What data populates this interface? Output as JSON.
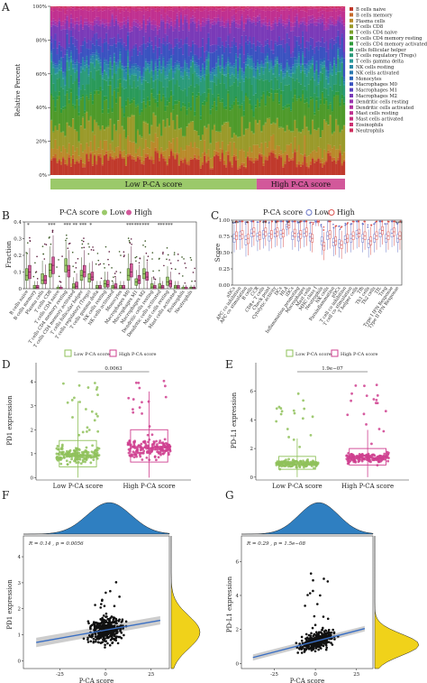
{
  "panels": {
    "A": "A",
    "B": "B",
    "C": "C",
    "D": "D",
    "E": "E",
    "F": "F",
    "G": "G"
  },
  "chart_data": [
    {
      "id": "A",
      "type": "bar",
      "ylabel": "Relative Percent",
      "yticks": [
        "0%",
        "20%",
        "40%",
        "60%",
        "80%",
        "100%"
      ],
      "ylim": [
        0,
        100
      ],
      "groups": [
        {
          "label": "Low P-CA score",
          "color": "#9bc96a"
        },
        {
          "label": "High P-CA score",
          "color": "#d2589a"
        }
      ],
      "group_split_fraction": 0.7,
      "n_samples": 150,
      "legend_position": "right",
      "cell_types": [
        "B cells naive",
        "B cells memory",
        "Plasma cells",
        "T cells CD8",
        "T cells CD4 naive",
        "T cells CD4 memory resting",
        "T cells CD4 memory activated",
        "T cells follicular helper",
        "T cells regulatory (Tregs)",
        "T cells gamma delta",
        "NK cells resting",
        "NK cells activated",
        "Monocytes",
        "Macrophages M0",
        "Macrophages M1",
        "Macrophages M2",
        "Dendritic cells resting",
        "Dendritic cells activated",
        "Mast cells resting",
        "Mast cells activated",
        "Eosinophils",
        "Neutrophils"
      ],
      "legend_labels": [
        "B cells naive",
        "B cells memory",
        "Plasma cells",
        "T cells CD8",
        "T cells CD4 naive",
        "T cells CD4 memory resting",
        "T cells CD4 memory activated",
        "cells follicular helper",
        "T cells regulatory (Tregs)",
        "T cells gamma delta",
        "NK cells resting",
        "NK cells activated",
        "Monocytes",
        "Macrophages M0",
        "Macrophages M1",
        "Macrophages M2",
        "Dendritic cells resting",
        "Dendritic cells activated",
        "Mast cells resting",
        "Mast cells activated",
        "Eosinophils",
        "Neutrophils"
      ],
      "colors": [
        "#c0392b",
        "#c66a2a",
        "#b98a2a",
        "#9a9a2a",
        "#7aa02a",
        "#4e9a2a",
        "#2e9a3a",
        "#2a9a5a",
        "#2a9a7a",
        "#2a9a9a",
        "#2a8aa6",
        "#2a78b0",
        "#2a64b8",
        "#3a52c0",
        "#5a44c0",
        "#7a3ab8",
        "#9a36b0",
        "#b032a0",
        "#c03090",
        "#c83080",
        "#cc3070",
        "#d02e5e"
      ],
      "mean_fractions": [
        0.085,
        0.015,
        0.06,
        0.12,
        0.005,
        0.14,
        0.02,
        0.09,
        0.07,
        0.01,
        0.03,
        0.015,
        0.01,
        0.08,
        0.04,
        0.09,
        0.02,
        0.02,
        0.05,
        0.015,
        0.005,
        0.005
      ]
    },
    {
      "id": "B",
      "type": "box",
      "title": "P-CA score",
      "legend": [
        {
          "name": "Low",
          "color": "#9bc96a"
        },
        {
          "name": "High",
          "color": "#d2589a"
        }
      ],
      "ylabel": "Fraction",
      "yticks": [
        "0",
        "0.1",
        "0.2",
        "0.3",
        "0.4"
      ],
      "ylim": [
        0,
        0.4
      ],
      "categories": [
        "B cells naive",
        "B cells memory",
        "Plasma cells",
        "T cells CD8",
        "T cells CD4 naive",
        "T cells CD4 memory resting",
        "T cells CD4 memory activated",
        "T cells follicular helper",
        "T cells regulatory (Tregs)",
        "T cells gamma delta",
        "NK cells resting",
        "NK cells activated",
        "Monocytes",
        "Macrophages M0",
        "Macrophages M1",
        "Macrophages M2",
        "Dendritic cells resting",
        "Dendritic cells activated",
        "Mast cells resting",
        "Mast cells activated",
        "Eosinophils",
        "Neutrophils"
      ],
      "low": [
        [
          0.05,
          0.08,
          0.12
        ],
        [
          0,
          0.005,
          0.02
        ],
        [
          0.03,
          0.05,
          0.09
        ],
        [
          0.07,
          0.11,
          0.15
        ],
        [
          0,
          0,
          0.01
        ],
        [
          0.1,
          0.14,
          0.18
        ],
        [
          0,
          0.01,
          0.03
        ],
        [
          0.05,
          0.08,
          0.11
        ],
        [
          0.04,
          0.06,
          0.09
        ],
        [
          0,
          0.005,
          0.02
        ],
        [
          0.01,
          0.03,
          0.05
        ],
        [
          0,
          0.01,
          0.02
        ],
        [
          0,
          0.005,
          0.02
        ],
        [
          0.05,
          0.08,
          0.12
        ],
        [
          0.02,
          0.04,
          0.06
        ],
        [
          0.06,
          0.09,
          0.12
        ],
        [
          0,
          0.01,
          0.03
        ],
        [
          0,
          0.01,
          0.03
        ],
        [
          0.02,
          0.04,
          0.07
        ],
        [
          0,
          0.01,
          0.02
        ],
        [
          0,
          0,
          0.01
        ],
        [
          0,
          0.005,
          0.01
        ]
      ],
      "high": [
        [
          0.06,
          0.1,
          0.14
        ],
        [
          0,
          0.008,
          0.02
        ],
        [
          0.03,
          0.05,
          0.08
        ],
        [
          0.09,
          0.14,
          0.19
        ],
        [
          0,
          0,
          0.01
        ],
        [
          0.07,
          0.11,
          0.14
        ],
        [
          0,
          0.015,
          0.04
        ],
        [
          0.07,
          0.1,
          0.14
        ],
        [
          0.05,
          0.07,
          0.1
        ],
        [
          0,
          0.005,
          0.02
        ],
        [
          0.01,
          0.025,
          0.05
        ],
        [
          0,
          0.01,
          0.03
        ],
        [
          0,
          0.005,
          0.02
        ],
        [
          0.07,
          0.1,
          0.15
        ],
        [
          0.03,
          0.05,
          0.08
        ],
        [
          0.05,
          0.07,
          0.1
        ],
        [
          0,
          0.01,
          0.02
        ],
        [
          0,
          0.01,
          0.02
        ],
        [
          0.01,
          0.03,
          0.05
        ],
        [
          0,
          0.01,
          0.02
        ],
        [
          0,
          0,
          0.01
        ],
        [
          0,
          0.005,
          0.01
        ]
      ],
      "significance": [
        "*",
        "",
        "",
        "***",
        "",
        "***",
        "**",
        "***",
        "*",
        "",
        "",
        "",
        "",
        "***",
        "***",
        "***",
        "",
        "***",
        "***",
        "",
        "",
        ""
      ]
    },
    {
      "id": "C",
      "type": "box",
      "title": "P-CA score",
      "legend": [
        {
          "name": "Low",
          "color": "#6b78c9"
        },
        {
          "name": "High",
          "color": "#d9534f"
        }
      ],
      "ylabel": "Score",
      "yticks": [
        "0.00",
        "0.25",
        "0.50",
        "0.75",
        "1.00"
      ],
      "ylim": [
        0,
        1
      ],
      "categories": [
        "aDCs",
        "APC co inhibition",
        "APC co stimulation",
        "B cells",
        "CCR",
        "CD8+ T cells",
        "Check point",
        "Cytolytic activity",
        "DCs",
        "HLA",
        "iDCs",
        "Inflammation promoting",
        "Macrophages",
        "Mast cells",
        "MHC class I",
        "Neutrophils",
        "NK cells",
        "Parainflammation",
        "pDCs",
        "T cell co inhibition",
        "T cell co stimulation",
        "T helper cells",
        "Tfh",
        "Th1 cells",
        "Th2 cells",
        "TIL",
        "Treg",
        "Type I IFN Response",
        "Type II IFN Response"
      ],
      "low": [
        [
          0.66,
          0.72,
          0.78
        ],
        [
          0.7,
          0.76,
          0.82
        ],
        [
          0.62,
          0.7,
          0.76
        ],
        [
          0.74,
          0.8,
          0.86
        ],
        [
          0.68,
          0.75,
          0.8
        ],
        [
          0.72,
          0.78,
          0.84
        ],
        [
          0.68,
          0.75,
          0.8
        ],
        [
          0.74,
          0.8,
          0.86
        ],
        [
          0.72,
          0.78,
          0.84
        ],
        [
          0.86,
          0.9,
          0.94
        ],
        [
          0.7,
          0.76,
          0.82
        ],
        [
          0.68,
          0.74,
          0.8
        ],
        [
          0.74,
          0.8,
          0.86
        ],
        [
          0.68,
          0.74,
          0.8
        ],
        [
          0.96,
          0.98,
          1
        ],
        [
          0.62,
          0.68,
          0.74
        ],
        [
          0.7,
          0.76,
          0.82
        ],
        [
          0.6,
          0.66,
          0.72
        ],
        [
          0.58,
          0.64,
          0.7
        ],
        [
          0.64,
          0.7,
          0.76
        ],
        [
          0.66,
          0.72,
          0.78
        ],
        [
          0.72,
          0.78,
          0.84
        ],
        [
          0.66,
          0.72,
          0.78
        ],
        [
          0.58,
          0.64,
          0.7
        ],
        [
          0.66,
          0.72,
          0.78
        ],
        [
          0.74,
          0.8,
          0.86
        ],
        [
          0.66,
          0.72,
          0.78
        ],
        [
          0.74,
          0.8,
          0.86
        ],
        [
          0.66,
          0.72,
          0.78
        ]
      ],
      "high": [
        [
          0.7,
          0.76,
          0.82
        ],
        [
          0.72,
          0.78,
          0.84
        ],
        [
          0.64,
          0.72,
          0.78
        ],
        [
          0.76,
          0.82,
          0.88
        ],
        [
          0.7,
          0.77,
          0.82
        ],
        [
          0.76,
          0.82,
          0.88
        ],
        [
          0.72,
          0.78,
          0.84
        ],
        [
          0.76,
          0.82,
          0.88
        ],
        [
          0.74,
          0.8,
          0.86
        ],
        [
          0.88,
          0.92,
          0.96
        ],
        [
          0.74,
          0.8,
          0.86
        ],
        [
          0.72,
          0.78,
          0.84
        ],
        [
          0.76,
          0.82,
          0.88
        ],
        [
          0.66,
          0.72,
          0.78
        ],
        [
          0.96,
          0.98,
          1
        ],
        [
          0.54,
          0.6,
          0.66
        ],
        [
          0.72,
          0.78,
          0.84
        ],
        [
          0.62,
          0.68,
          0.74
        ],
        [
          0.56,
          0.62,
          0.68
        ],
        [
          0.66,
          0.72,
          0.78
        ],
        [
          0.7,
          0.76,
          0.82
        ],
        [
          0.74,
          0.8,
          0.86
        ],
        [
          0.7,
          0.76,
          0.82
        ],
        [
          0.62,
          0.68,
          0.74
        ],
        [
          0.7,
          0.76,
          0.82
        ],
        [
          0.78,
          0.84,
          0.9
        ],
        [
          0.7,
          0.76,
          0.82
        ],
        [
          0.76,
          0.82,
          0.88
        ],
        [
          0.7,
          0.76,
          0.82
        ]
      ],
      "significance": [
        "***",
        "",
        "*",
        "",
        "",
        "**",
        "",
        "*",
        "",
        "*",
        "",
        "*",
        "",
        "",
        "",
        "",
        "",
        "",
        "",
        "",
        "",
        "",
        "",
        "",
        "",
        "",
        "",
        "",
        "***"
      ]
    },
    {
      "id": "D",
      "type": "box",
      "legend": [
        {
          "name": "Low P-CA score",
          "color": "#8fc15a"
        },
        {
          "name": "High P-CA score",
          "color": "#cf3f8f"
        }
      ],
      "ylabel": "PD1 expression",
      "categories": [
        "Low P-CA score",
        "High P-CA score"
      ],
      "yticks": [
        "0",
        "1",
        "2",
        "3",
        "4"
      ],
      "ylim": [
        -0.1,
        4.8
      ],
      "box_stats": [
        [
          0.45,
          0.95,
          1.55
        ],
        [
          0.65,
          1.25,
          2.0
        ]
      ],
      "whiskers": [
        [
          0,
          3.2
        ],
        [
          0,
          3.6
        ]
      ],
      "pvalue": "0.0063"
    },
    {
      "id": "E",
      "type": "box",
      "legend": [
        {
          "name": "Low P-CA score",
          "color": "#8fc15a"
        },
        {
          "name": "High P-CA score",
          "color": "#cf3f8f"
        }
      ],
      "ylabel": "PD-L1 expression",
      "categories": [
        "Low P-CA score",
        "High P-CA score"
      ],
      "yticks": [
        "0",
        "2",
        "4",
        "6"
      ],
      "ylim": [
        -0.2,
        8
      ],
      "box_stats": [
        [
          0.55,
          0.95,
          1.45
        ],
        [
          0.85,
          1.35,
          2.0
        ]
      ],
      "whiskers": [
        [
          0,
          2.7
        ],
        [
          0,
          3.3
        ]
      ],
      "pvalue": "1.9e−07"
    },
    {
      "id": "F",
      "type": "scatter",
      "xlabel": "P-CA score",
      "ylabel": "PD1 expression",
      "annotation": "R = 0.14 , p = 0.0056",
      "xticks": [
        "-25",
        "0",
        "25"
      ],
      "yticks": [
        "0",
        "1",
        "2",
        "3",
        "4"
      ],
      "xlim": [
        -45,
        35
      ],
      "ylim": [
        -0.3,
        4.8
      ],
      "fit": {
        "slope": 0.0125,
        "intercept": 1.18
      },
      "x_density_color": "#2f7fc1",
      "y_density_color": "#f0d21a",
      "n_points": 380
    },
    {
      "id": "G",
      "type": "scatter",
      "xlabel": "P-CA score",
      "ylabel": "PD-L1 expression",
      "annotation": "R = 0.29 , p = 1.5e−08",
      "xticks": [
        "-25",
        "0",
        "25"
      ],
      "yticks": [
        "0",
        "2",
        "4",
        "6"
      ],
      "xlim": [
        -45,
        35
      ],
      "ylim": [
        -0.3,
        7.5
      ],
      "fit": {
        "slope": 0.025,
        "intercept": 1.3
      },
      "x_density_color": "#2f7fc1",
      "y_density_color": "#f0d21a",
      "n_points": 380
    }
  ]
}
